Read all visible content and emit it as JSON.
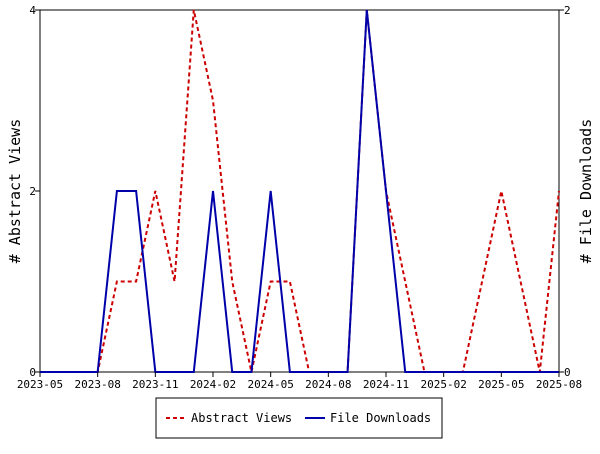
{
  "chart_data": {
    "type": "line",
    "x_axis": {
      "ticks": [
        "2023-05",
        "2023-08",
        "2023-11",
        "2024-02",
        "2024-05",
        "2024-08",
        "2024-11",
        "2025-02",
        "2025-05",
        "2025-08"
      ],
      "range": [
        "2023-05",
        "2025-08"
      ]
    },
    "y_left": {
      "label": "# Abstract Views",
      "ticks": [
        "0",
        "2",
        "4"
      ],
      "range": [
        0,
        4
      ]
    },
    "y_right": {
      "label": "# File Downloads",
      "ticks": [
        "0",
        "2"
      ],
      "range": [
        0,
        2
      ]
    },
    "series": [
      {
        "name": "Abstract Views",
        "axis": "left",
        "color": "#cc0000",
        "style": "dashed",
        "points": [
          [
            "2023-05",
            0
          ],
          [
            "2023-06",
            0
          ],
          [
            "2023-07",
            0
          ],
          [
            "2023-08",
            0
          ],
          [
            "2023-09",
            1
          ],
          [
            "2023-10",
            1
          ],
          [
            "2023-11",
            2
          ],
          [
            "2023-12",
            1
          ],
          [
            "2024-01",
            4
          ],
          [
            "2024-02",
            3
          ],
          [
            "2024-03",
            1
          ],
          [
            "2024-04",
            0
          ],
          [
            "2024-05",
            1
          ],
          [
            "2024-06",
            1
          ],
          [
            "2024-07",
            0
          ],
          [
            "2024-08",
            0
          ],
          [
            "2024-09",
            0
          ],
          [
            "2024-10",
            4
          ],
          [
            "2024-11",
            2
          ],
          [
            "2024-12",
            1
          ],
          [
            "2025-01",
            0
          ],
          [
            "2025-02",
            0
          ],
          [
            "2025-03",
            0
          ],
          [
            "2025-04",
            1
          ],
          [
            "2025-05",
            2
          ],
          [
            "2025-06",
            1
          ],
          [
            "2025-07",
            0
          ],
          [
            "2025-08",
            2
          ]
        ]
      },
      {
        "name": "File Downloads",
        "axis": "right",
        "color": "#0000aa",
        "style": "solid",
        "points": [
          [
            "2023-05",
            0
          ],
          [
            "2023-06",
            0
          ],
          [
            "2023-07",
            0
          ],
          [
            "2023-08",
            0
          ],
          [
            "2023-09",
            1
          ],
          [
            "2023-09-15",
            1
          ],
          [
            "2023-10",
            1
          ],
          [
            "2023-11",
            0
          ],
          [
            "2023-12",
            0
          ],
          [
            "2024-01",
            0
          ],
          [
            "2024-02",
            1
          ],
          [
            "2024-03",
            0
          ],
          [
            "2024-04",
            0
          ],
          [
            "2024-05",
            1
          ],
          [
            "2024-06",
            0
          ],
          [
            "2024-07",
            0
          ],
          [
            "2024-08",
            0
          ],
          [
            "2024-09",
            0
          ],
          [
            "2024-10",
            2
          ],
          [
            "2024-11",
            1
          ],
          [
            "2024-12",
            0
          ],
          [
            "2025-01",
            0
          ],
          [
            "2025-02",
            0
          ],
          [
            "2025-03",
            0
          ],
          [
            "2025-04",
            0
          ],
          [
            "2025-05",
            0
          ],
          [
            "2025-06",
            0
          ],
          [
            "2025-07",
            0
          ],
          [
            "2025-08",
            0
          ]
        ]
      }
    ],
    "grid": false,
    "legend": {
      "placement": "bottom-center",
      "items": [
        "Abstract Views",
        "File Downloads"
      ]
    }
  }
}
